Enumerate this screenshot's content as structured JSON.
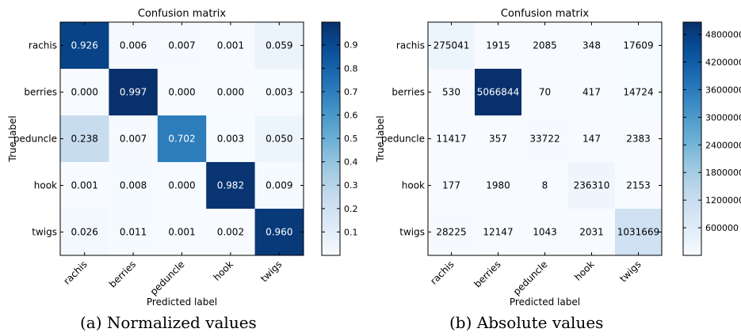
{
  "chart_data": [
    {
      "type": "heatmap",
      "title": "Confusion matrix",
      "xlabel": "Predicted label",
      "ylabel": "True label",
      "x_categories": [
        "rachis",
        "berries",
        "peduncle",
        "hook",
        "twigs"
      ],
      "y_categories": [
        "rachis",
        "berries",
        "peduncle",
        "hook",
        "twigs"
      ],
      "values": [
        [
          0.926,
          0.006,
          0.007,
          0.001,
          0.059
        ],
        [
          0.0,
          0.997,
          0.0,
          0.0,
          0.003
        ],
        [
          0.238,
          0.007,
          0.702,
          0.003,
          0.05
        ],
        [
          0.001,
          0.008,
          0.0,
          0.982,
          0.009
        ],
        [
          0.026,
          0.011,
          0.001,
          0.002,
          0.96
        ]
      ],
      "cell_labels": [
        [
          "0.926",
          "0.006",
          "0.007",
          "0.001",
          "0.059"
        ],
        [
          "0.000",
          "0.997",
          "0.000",
          "0.000",
          "0.003"
        ],
        [
          "0.238",
          "0.007",
          "0.702",
          "0.003",
          "0.050"
        ],
        [
          "0.001",
          "0.008",
          "0.000",
          "0.982",
          "0.009"
        ],
        [
          "0.026",
          "0.011",
          "0.001",
          "0.002",
          "0.960"
        ]
      ],
      "colormap": "Blues",
      "colorbar": {
        "range": [
          0.0,
          0.997
        ],
        "ticks": [
          0.1,
          0.2,
          0.3,
          0.4,
          0.5,
          0.6,
          0.7,
          0.8,
          0.9
        ],
        "tick_labels": [
          "0.1",
          "0.2",
          "0.3",
          "0.4",
          "0.5",
          "0.6",
          "0.7",
          "0.8",
          "0.9"
        ]
      },
      "caption": "(a) Normalized values"
    },
    {
      "type": "heatmap",
      "title": "Confusion matrix",
      "xlabel": "Predicted label",
      "ylabel": "True label",
      "x_categories": [
        "rachis",
        "berries",
        "peduncle",
        "hook",
        "twigs"
      ],
      "y_categories": [
        "rachis",
        "berries",
        "peduncle",
        "hook",
        "twigs"
      ],
      "values": [
        [
          275041,
          1915,
          2085,
          348,
          17609
        ],
        [
          530,
          5066844,
          70,
          417,
          14724
        ],
        [
          11417,
          357,
          33722,
          147,
          2383
        ],
        [
          177,
          1980,
          8,
          236310,
          2153
        ],
        [
          28225,
          12147,
          1043,
          2031,
          1031669
        ]
      ],
      "cell_labels": [
        [
          "275041",
          "1915",
          "2085",
          "348",
          "17609"
        ],
        [
          "530",
          "5066844",
          "70",
          "417",
          "14724"
        ],
        [
          "11417",
          "357",
          "33722",
          "147",
          "2383"
        ],
        [
          "177",
          "1980",
          "8",
          "236310",
          "2153"
        ],
        [
          "28225",
          "12147",
          "1043",
          "2031",
          "1031669"
        ]
      ],
      "colormap": "Blues",
      "colorbar": {
        "range": [
          8,
          5066844
        ],
        "ticks": [
          600000,
          1200000,
          1800000,
          2400000,
          3000000,
          3600000,
          4200000,
          4800000
        ],
        "tick_labels": [
          "600000",
          "1200000",
          "1800000",
          "2400000",
          "3000000",
          "3600000",
          "4200000",
          "4800000"
        ]
      },
      "caption": "(b) Absolute values"
    }
  ],
  "colors": {
    "blues_low": "#f7fbff",
    "blues_high": "#08306b",
    "text_dark": "#000000",
    "text_light": "#ffffff"
  }
}
